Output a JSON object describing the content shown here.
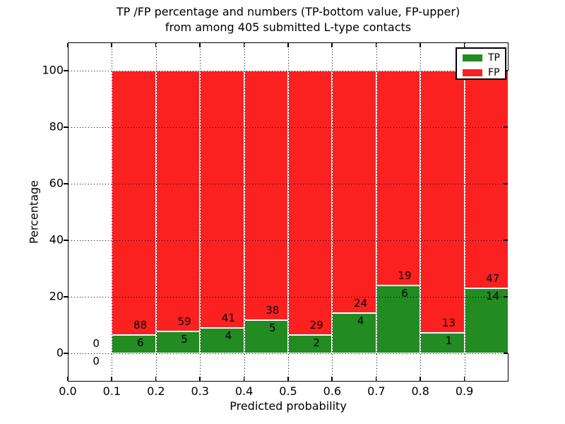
{
  "figure": {
    "title_line1": "TP /FP percentage and numbers (TP-bottom value, FP-upper)",
    "title_line2": "from among 405 submitted L-type contacts",
    "xlabel": "Predicted probability",
    "ylabel": "Percentage"
  },
  "legend": {
    "items": [
      {
        "label": "TP",
        "color": "#228b22"
      },
      {
        "label": "FP",
        "color": "#fc2121"
      }
    ]
  },
  "chart_data": {
    "type": "bar",
    "stacked": true,
    "title": "TP /FP percentage and numbers (TP-bottom value, FP-upper) from among 405 submitted L-type contacts",
    "xlabel": "Predicted probability",
    "ylabel": "Percentage",
    "xlim": [
      0.0,
      1.0
    ],
    "ylim": [
      -10,
      110
    ],
    "grid": "dotted",
    "legend_position": "upper right",
    "total_submitted_contacts": 405,
    "x_tick_labels": [
      "0.0",
      "0.1",
      "0.2",
      "0.3",
      "0.4",
      "0.5",
      "0.6",
      "0.7",
      "0.8",
      "0.9"
    ],
    "y_ticks": [
      0,
      20,
      40,
      60,
      80,
      100
    ],
    "bin_ranges": [
      "0.0-0.1",
      "0.1-0.2",
      "0.2-0.3",
      "0.3-0.4",
      "0.4-0.5",
      "0.5-0.6",
      "0.6-0.7",
      "0.7-0.8",
      "0.8-0.9",
      "0.9-1.0"
    ],
    "series": [
      {
        "name": "TP",
        "position": "bottom",
        "color": "#228b22",
        "counts": [
          0,
          6,
          5,
          4,
          5,
          2,
          4,
          6,
          1,
          14
        ]
      },
      {
        "name": "FP",
        "position": "upper",
        "color": "#fc2121",
        "counts": [
          0,
          88,
          59,
          41,
          38,
          29,
          24,
          19,
          13,
          47
        ]
      }
    ],
    "tp_percent_of_bin": [
      0,
      6.4,
      7.8,
      8.9,
      11.6,
      6.5,
      14.3,
      24.0,
      7.1,
      23.0
    ],
    "bar_total_height_percent": 100
  }
}
